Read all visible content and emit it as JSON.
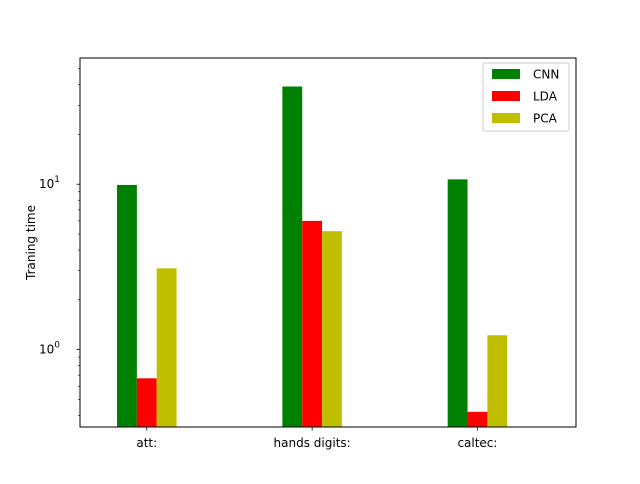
{
  "chart_data": {
    "type": "bar",
    "title": "",
    "xlabel": "",
    "ylabel": "Traning time",
    "yscale": "log",
    "ylim": [
      0.34,
      58
    ],
    "grid": false,
    "legend_position": "top-right",
    "categories": [
      "att:",
      "hands digits:",
      "caltec:"
    ],
    "series": [
      {
        "name": "CNN",
        "color": "#008000",
        "values": [
          9.9,
          39.0,
          10.7
        ]
      },
      {
        "name": "LDA",
        "color": "#ff0000",
        "values": [
          0.67,
          6.0,
          0.42
        ]
      },
      {
        "name": "PCA",
        "color": "#bfbf00",
        "values": [
          3.1,
          5.2,
          1.22
        ]
      }
    ],
    "y_ticks": [
      {
        "value": 1,
        "label": "10",
        "exp": "0"
      },
      {
        "value": 10,
        "label": "10",
        "exp": "1"
      }
    ]
  }
}
